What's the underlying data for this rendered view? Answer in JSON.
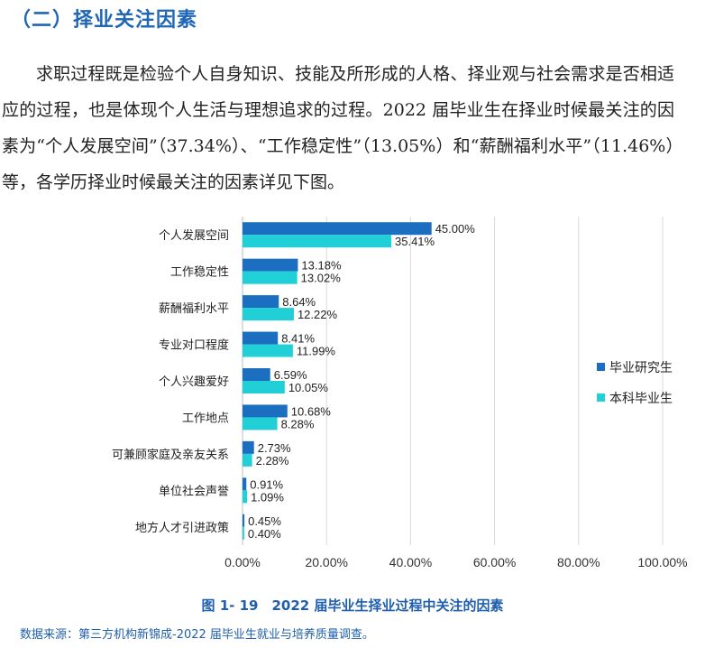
{
  "heading": "（二）择业关注因素",
  "paragraph": "求职过程既是检验个人自身知识、技能及所形成的人格、择业观与社会需求是否相适应的过程，也是体现个人生活与理想追求的过程。2022 届毕业生在择业时候最关注的因素为“个人发展空间”（37.34%）、“工作稳定性”（13.05%）和“薪酬福利水平”（11.46%）等，各学历择业时候最关注的因素详见下图。",
  "caption": "图 1- 19　2022 届毕业生择业过程中关注的因素",
  "source": "数据来源：第三方机构新锦成-2022 届毕业生就业与培养质量调查。",
  "chart_data": {
    "type": "bar",
    "orientation": "horizontal",
    "categories": [
      "个人发展空间",
      "工作稳定性",
      "薪酬福利水平",
      "专业对口程度",
      "个人兴趣爱好",
      "工作地点",
      "可兼顾家庭及亲友关系",
      "单位社会声誉",
      "地方人才引进政策"
    ],
    "series": [
      {
        "name": "毕业研究生",
        "color": "#1c6fc0",
        "values": [
          45.0,
          13.18,
          8.64,
          8.41,
          6.59,
          10.68,
          2.73,
          0.91,
          0.45
        ],
        "labels": [
          "45.00%",
          "13.18%",
          "8.64%",
          "8.41%",
          "6.59%",
          "10.68%",
          "2.73%",
          "0.91%",
          "0.45%"
        ]
      },
      {
        "name": "本科毕业生",
        "color": "#21cfd6",
        "values": [
          35.41,
          13.02,
          12.22,
          11.99,
          10.05,
          8.28,
          2.28,
          1.09,
          0.4
        ],
        "labels": [
          "35.41%",
          "13.02%",
          "12.22%",
          "11.99%",
          "10.05%",
          "8.28%",
          "2.28%",
          "1.09%",
          "0.40%"
        ]
      }
    ],
    "x_ticks": [
      "0.00%",
      "20.00%",
      "40.00%",
      "60.00%",
      "80.00%",
      "100.00%"
    ],
    "xlim": [
      0,
      100
    ],
    "grid": true,
    "legend_position": "right"
  }
}
